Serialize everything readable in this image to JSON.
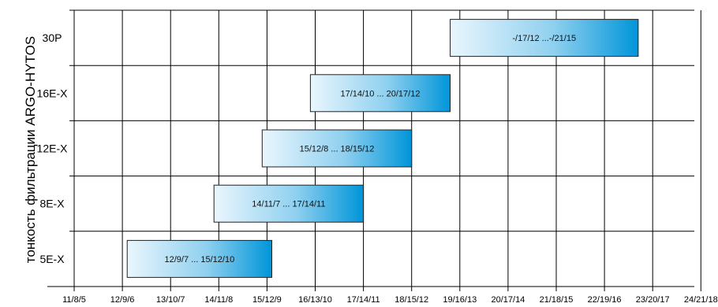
{
  "chart_data": {
    "type": "bar",
    "orientation": "horizontal-range",
    "ylabel": "тонкость фильтрации ARGO-HYTOS",
    "x_ticks": [
      "11/8/5",
      "12/9/6",
      "13/10/7",
      "14/11/8",
      "15/12/9",
      "16/13/10",
      "17/14/11",
      "18/15/12",
      "19/16/13",
      "20/17/14",
      "21/18/15",
      "22/19/16",
      "23/20/17",
      "24/21/18"
    ],
    "categories": [
      "30P",
      "16E-X",
      "12E-X",
      "8E-X",
      "5E-X"
    ],
    "ranges": [
      {
        "category": "30P",
        "start": 18.8,
        "end": 22.7,
        "label": "-/17/12 ...-/21/15"
      },
      {
        "category": "16E-X",
        "start": 15.9,
        "end": 18.8,
        "label": "17/14/10 ... 20/17/12"
      },
      {
        "category": "12E-X",
        "start": 14.9,
        "end": 18.0,
        "label": "15/12/8 ... 18/15/12"
      },
      {
        "category": "8E-X",
        "start": 13.9,
        "end": 17.0,
        "label": "14/11/7 ... 17/14/11"
      },
      {
        "category": "5E-X",
        "start": 12.1,
        "end": 15.1,
        "label": "12/9/7 ... 15/12/10"
      }
    ],
    "xlim": [
      11,
      24
    ],
    "grid": true,
    "bar_gradient": [
      "#eaf6fd",
      "#0095d9"
    ]
  }
}
